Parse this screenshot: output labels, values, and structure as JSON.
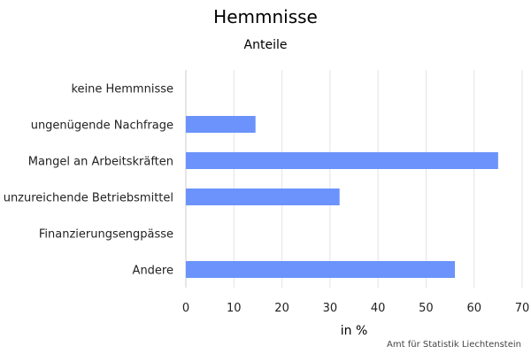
{
  "chart_data": {
    "type": "bar",
    "orientation": "horizontal",
    "title": "Hemmnisse",
    "subtitle": "Anteile",
    "xlabel": "in %",
    "ylabel": "",
    "categories": [
      "keine Hemmnisse",
      "ungenügende Nachfrage",
      "Mangel an Arbeitskräften",
      "unzureichende Betriebsmittel",
      "Finanzierungsengpässe",
      "Andere"
    ],
    "values": [
      0,
      14.5,
      65,
      32,
      0,
      56
    ],
    "xlim": [
      0,
      70
    ],
    "xticks": [
      "0",
      "10",
      "20",
      "30",
      "40",
      "50",
      "60",
      "70"
    ],
    "grid": true,
    "bar_color": "#6b93fb",
    "credit": "Amt für Statistik Liechtenstein"
  }
}
